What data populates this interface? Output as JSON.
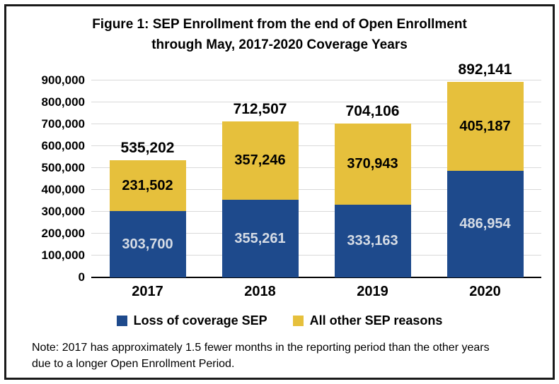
{
  "chart_data": {
    "type": "bar",
    "stacked": true,
    "title": "Figure 1: SEP Enrollment from the end of Open Enrollment through May, 2017-2020 Coverage Years",
    "categories": [
      "2017",
      "2018",
      "2019",
      "2020"
    ],
    "series": [
      {
        "name": "Loss of coverage SEP",
        "color": "#1E4A8C",
        "label_color": "#D6DCE5",
        "values": [
          303700,
          355261,
          333163,
          486954
        ]
      },
      {
        "name": "All other SEP reasons",
        "color": "#E6C03C",
        "label_color": "#000000",
        "values": [
          231502,
          357246,
          370943,
          405187
        ]
      }
    ],
    "totals": [
      535202,
      712507,
      704106,
      892141
    ],
    "ylim": [
      0,
      900000
    ],
    "ytick_step": 100000,
    "grid": true,
    "legend_position": "bottom"
  },
  "note": {
    "text": "Note: 2017 has approximately 1.5 fewer months in the reporting period than the other years due to a longer Open Enrollment Period."
  },
  "colors": {
    "bar_blue": "#1E4A8C",
    "bar_gold": "#E6C03C",
    "gridline": "#D9D9D9",
    "axis_line": "#000000",
    "blue_segment_text": "#D6DCE5",
    "frame_border": "#1A1A1A"
  }
}
